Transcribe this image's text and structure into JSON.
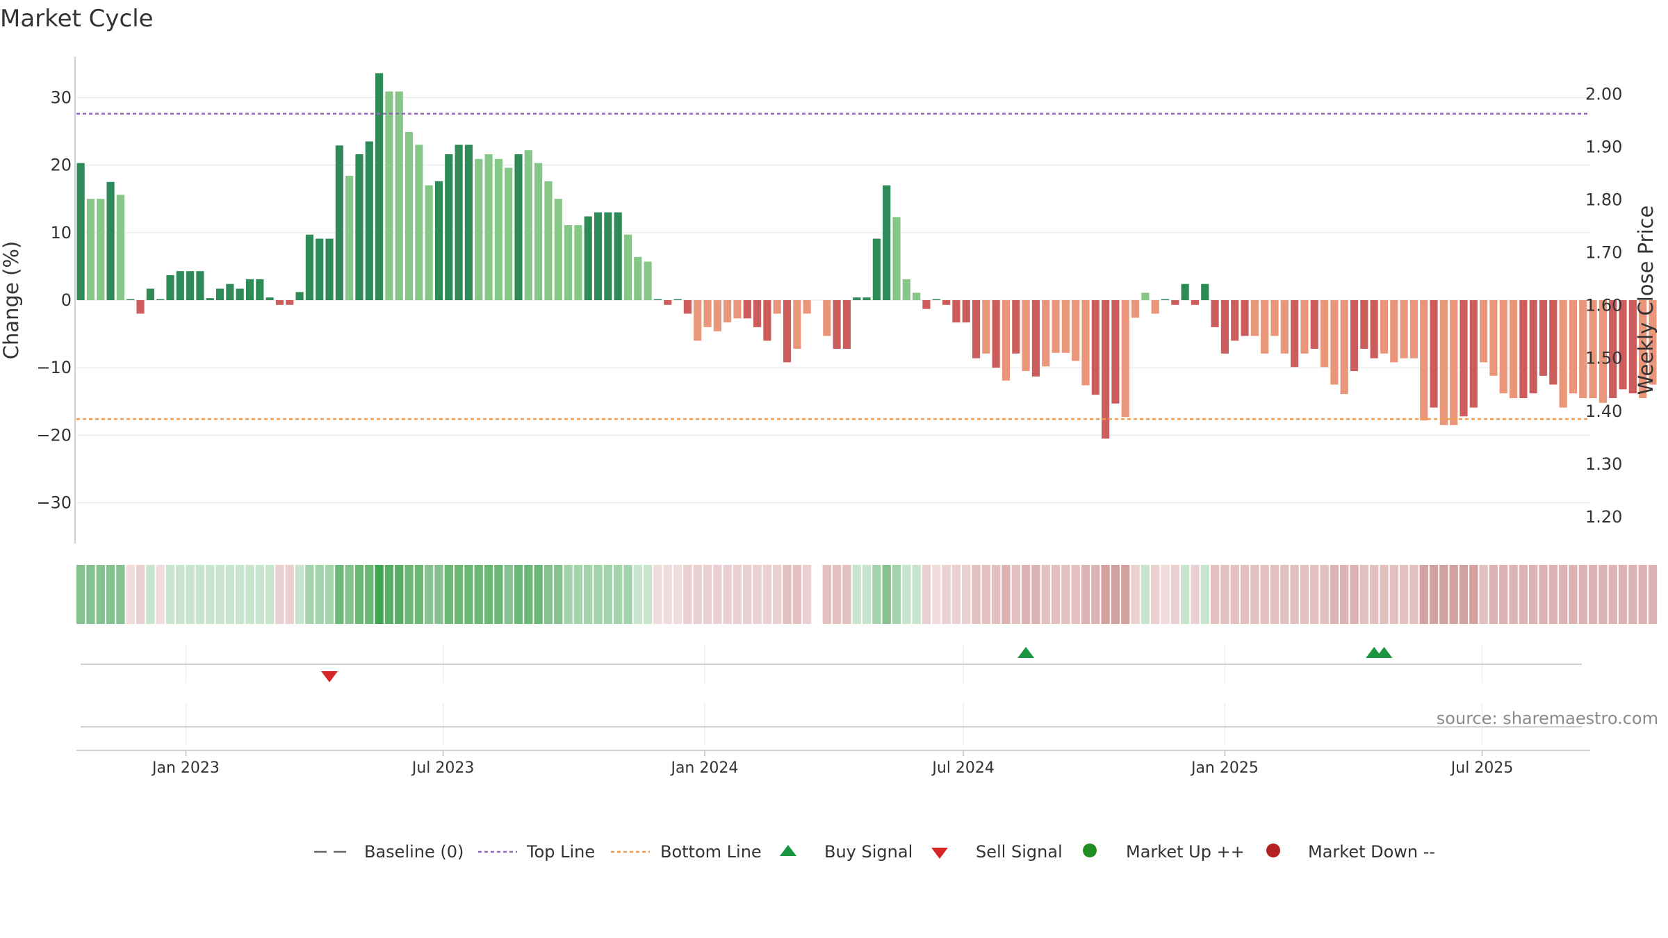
{
  "chart_data": {
    "type": "bar",
    "title": "Market Cycle",
    "ylabel": "Change (%)",
    "y2label": "Weekly Close Price",
    "ylim": [
      -36,
      36
    ],
    "y2lim": [
      1.15,
      2.07
    ],
    "yticks": [
      30,
      20,
      10,
      0,
      -10,
      -20,
      -30
    ],
    "ytick_labels": [
      "30",
      "20",
      "10",
      "0",
      "−10",
      "−20",
      "−30"
    ],
    "y2ticks": [
      2.0,
      1.9,
      1.8,
      1.7,
      1.6,
      1.5,
      1.4,
      1.3,
      1.2
    ],
    "y2tick_labels": [
      "2.00",
      "1.90",
      "1.80",
      "1.70",
      "1.60",
      "1.50",
      "1.40",
      "1.30",
      "1.20"
    ],
    "top_line": 27.6,
    "bottom_line": -17.6,
    "x_start": "2022-10-16",
    "x_end": "2025-09-15",
    "x_ticks": [
      "2023-01-01",
      "2023-07-01",
      "2024-01-01",
      "2024-07-01",
      "2025-01-01",
      "2025-07-01"
    ],
    "x_tick_labels": [
      "Jan 2023",
      "Jul 2023",
      "Jan 2024",
      "Jul 2024",
      "Jan 2025",
      "Jul 2025"
    ],
    "weeks_start": "2022-10-19",
    "values": [
      20.3,
      15,
      15,
      17.5,
      15.6,
      0,
      -2,
      1.7,
      0,
      3.7,
      4.3,
      4.3,
      4.3,
      0.3,
      1.7,
      2.4,
      1.7,
      3.1,
      3.1,
      0.4,
      -0.7,
      -0.7,
      1.2,
      9.7,
      9.1,
      9.1,
      22.9,
      18.4,
      21.6,
      23.5,
      33.6,
      30.9,
      30.9,
      24.9,
      23,
      17,
      17.6,
      21.6,
      23,
      23,
      20.9,
      21.6,
      20.9,
      19.6,
      21.6,
      22.2,
      20.3,
      17.6,
      15,
      11.1,
      11.1,
      12.4,
      13,
      13,
      13,
      9.7,
      6.4,
      5.7,
      0,
      -0.7,
      0,
      -2,
      -6,
      -4,
      -4.6,
      -3.3,
      -2.7,
      -2.7,
      -4,
      -6,
      -2,
      -9.2,
      -7.2,
      -2,
      null,
      -5.3,
      -7.2,
      -7.2,
      0.4,
      0.4,
      9.1,
      17,
      12.3,
      3.1,
      1.1,
      -1.3,
      0,
      -0.7,
      -3.3,
      -3.3,
      -8.6,
      -7.9,
      -10,
      -11.9,
      -7.9,
      -10.5,
      -11.3,
      -9.8,
      -7.8,
      -7.8,
      -9,
      -12.6,
      -14,
      -20.5,
      -15.3,
      -17.3,
      -2.6,
      1.1,
      -2,
      0,
      -0.7,
      2.4,
      -0.7,
      2.4,
      -4,
      -7.9,
      -6,
      -5.3,
      -5.3,
      -7.9,
      -5.3,
      -7.9,
      -9.9,
      -7.9,
      -7.2,
      -9.9,
      -12.5,
      -13.9,
      -10.5,
      -7.2,
      -8.6,
      -7.9,
      -9.2,
      -8.6,
      -8.6,
      -17.8,
      -15.9,
      -18.5,
      -18.5,
      -17.2,
      -15.9,
      -9.2,
      -11.2,
      -13.8,
      -14.5,
      -14.5,
      -13.8,
      -11.2,
      -12.5,
      -15.9,
      -13.8,
      -14.5,
      -14.5,
      -15.2,
      -14.5,
      -13.2,
      -13.8,
      -14.5,
      -12.5
    ],
    "light_weeks": [
      1,
      2,
      4,
      27,
      31,
      32,
      33,
      34,
      35,
      40,
      41,
      42,
      43,
      45,
      46,
      47,
      48,
      49,
      50,
      55,
      56,
      57,
      62,
      63,
      64,
      65,
      66,
      70,
      72,
      73,
      75,
      82,
      83,
      84,
      91,
      93,
      95,
      97,
      98,
      99,
      100,
      101,
      105,
      106,
      107,
      108,
      118,
      119,
      120,
      121,
      123,
      125,
      126,
      127,
      131,
      132,
      133,
      134,
      135,
      137,
      138,
      141,
      142,
      143,
      144,
      149,
      150,
      151,
      152,
      153,
      157,
      158,
      159,
      160
    ],
    "regime_colors": [
      "#86c28f",
      "#86c28f",
      "#86c28f",
      "#86c28f",
      "#86c28f",
      "#f1dcdc",
      "#ead0d0",
      "#c7e4cc",
      "#f1dcdc",
      "#c7e4cc",
      "#c7e4cc",
      "#c7e4cc",
      "#c7e4cc",
      "#c7e4cc",
      "#c7e4cc",
      "#c7e4cc",
      "#c7e4cc",
      "#c7e4cc",
      "#c7e4cc",
      "#c7e4cc",
      "#ead0d0",
      "#ead0d0",
      "#c7e4cc",
      "#a3d3aa",
      "#a3d3aa",
      "#a3d3aa",
      "#6cb877",
      "#86c28f",
      "#6cb877",
      "#6cb877",
      "#3ea552",
      "#58ae66",
      "#58ae66",
      "#6cb877",
      "#6cb877",
      "#86c28f",
      "#86c28f",
      "#6cb877",
      "#6cb877",
      "#6cb877",
      "#6cb877",
      "#6cb877",
      "#6cb877",
      "#86c28f",
      "#6cb877",
      "#6cb877",
      "#6cb877",
      "#86c28f",
      "#86c28f",
      "#a3d3aa",
      "#a3d3aa",
      "#a3d3aa",
      "#a3d3aa",
      "#a3d3aa",
      "#a3d3aa",
      "#a3d3aa",
      "#c7e4cc",
      "#c7e4cc",
      "#f1dcdc",
      "#f1dcdc",
      "#f1dcdc",
      "#ead0d0",
      "#ead0d0",
      "#ead0d0",
      "#ead0d0",
      "#ead0d0",
      "#ead0d0",
      "#ead0d0",
      "#ead0d0",
      "#ead0d0",
      "#ead0d0",
      "#e2c0c0",
      "#e2c0c0",
      "#ead0d0",
      null,
      "#e2c0c0",
      "#e2c0c0",
      "#e2c0c0",
      "#c7e4cc",
      "#c7e4cc",
      "#a3d3aa",
      "#86c28f",
      "#a3d3aa",
      "#c7e4cc",
      "#c7e4cc",
      "#ead0d0",
      "#f1dcdc",
      "#ead0d0",
      "#ead0d0",
      "#ead0d0",
      "#e2c0c0",
      "#e2c0c0",
      "#e2c0c0",
      "#dcb3b3",
      "#e2c0c0",
      "#dcb3b3",
      "#dcb3b3",
      "#e2c0c0",
      "#e2c0c0",
      "#e2c0c0",
      "#e2c0c0",
      "#dcb3b3",
      "#dcb3b3",
      "#d4a1a1",
      "#d4a1a1",
      "#d4a1a1",
      "#ead0d0",
      "#c7e4cc",
      "#ead0d0",
      "#f1dcdc",
      "#ead0d0",
      "#c7e4cc",
      "#ead0d0",
      "#c7e4cc",
      "#e2c0c0",
      "#e2c0c0",
      "#e2c0c0",
      "#e2c0c0",
      "#e2c0c0",
      "#e2c0c0",
      "#e2c0c0",
      "#e2c0c0",
      "#e2c0c0",
      "#e2c0c0",
      "#e2c0c0",
      "#e2c0c0",
      "#dcb3b3",
      "#dcb3b3",
      "#dcb3b3",
      "#e2c0c0",
      "#e2c0c0",
      "#e2c0c0",
      "#e2c0c0",
      "#e2c0c0",
      "#e2c0c0",
      "#d4a1a1",
      "#d4a1a1",
      "#d4a1a1",
      "#d4a1a1",
      "#d4a1a1",
      "#d4a1a1",
      "#e2c0c0",
      "#dcb3b3",
      "#dcb3b3",
      "#dcb3b3",
      "#dcb3b3",
      "#dcb3b3",
      "#dcb3b3",
      "#dcb3b3",
      "#dcb3b3",
      "#dcb3b3",
      "#dcb3b3",
      "#dcb3b3",
      "#dcb3b3",
      "#dcb3b3",
      "#dcb3b3",
      "#dcb3b3",
      "#dcb3b3",
      "#dcb3b3"
    ],
    "buy_signals": [
      "2024-08-14",
      "2025-04-16",
      "2025-04-23"
    ],
    "sell_signals": [
      "2023-04-12"
    ],
    "legend": [
      "Baseline (0)",
      "Top Line",
      "Bottom Line",
      "Buy Signal",
      "Sell Signal",
      "Market Up ++",
      "Market Down --"
    ],
    "legend_placement": "bottom-center",
    "source": "source: sharemaestro.com",
    "grid": true,
    "colors": {
      "up_dark": "#2e8b57",
      "up_light": "#86c687",
      "down_dark": "#cd5c5c",
      "down_light": "#e9967a",
      "top_line": "#9467bd",
      "bottom_line": "#f39c48",
      "buy": "#1a9641",
      "sell": "#d62728",
      "market_up": "#228b22",
      "market_down": "#b22222",
      "baseline": "#666666"
    }
  }
}
